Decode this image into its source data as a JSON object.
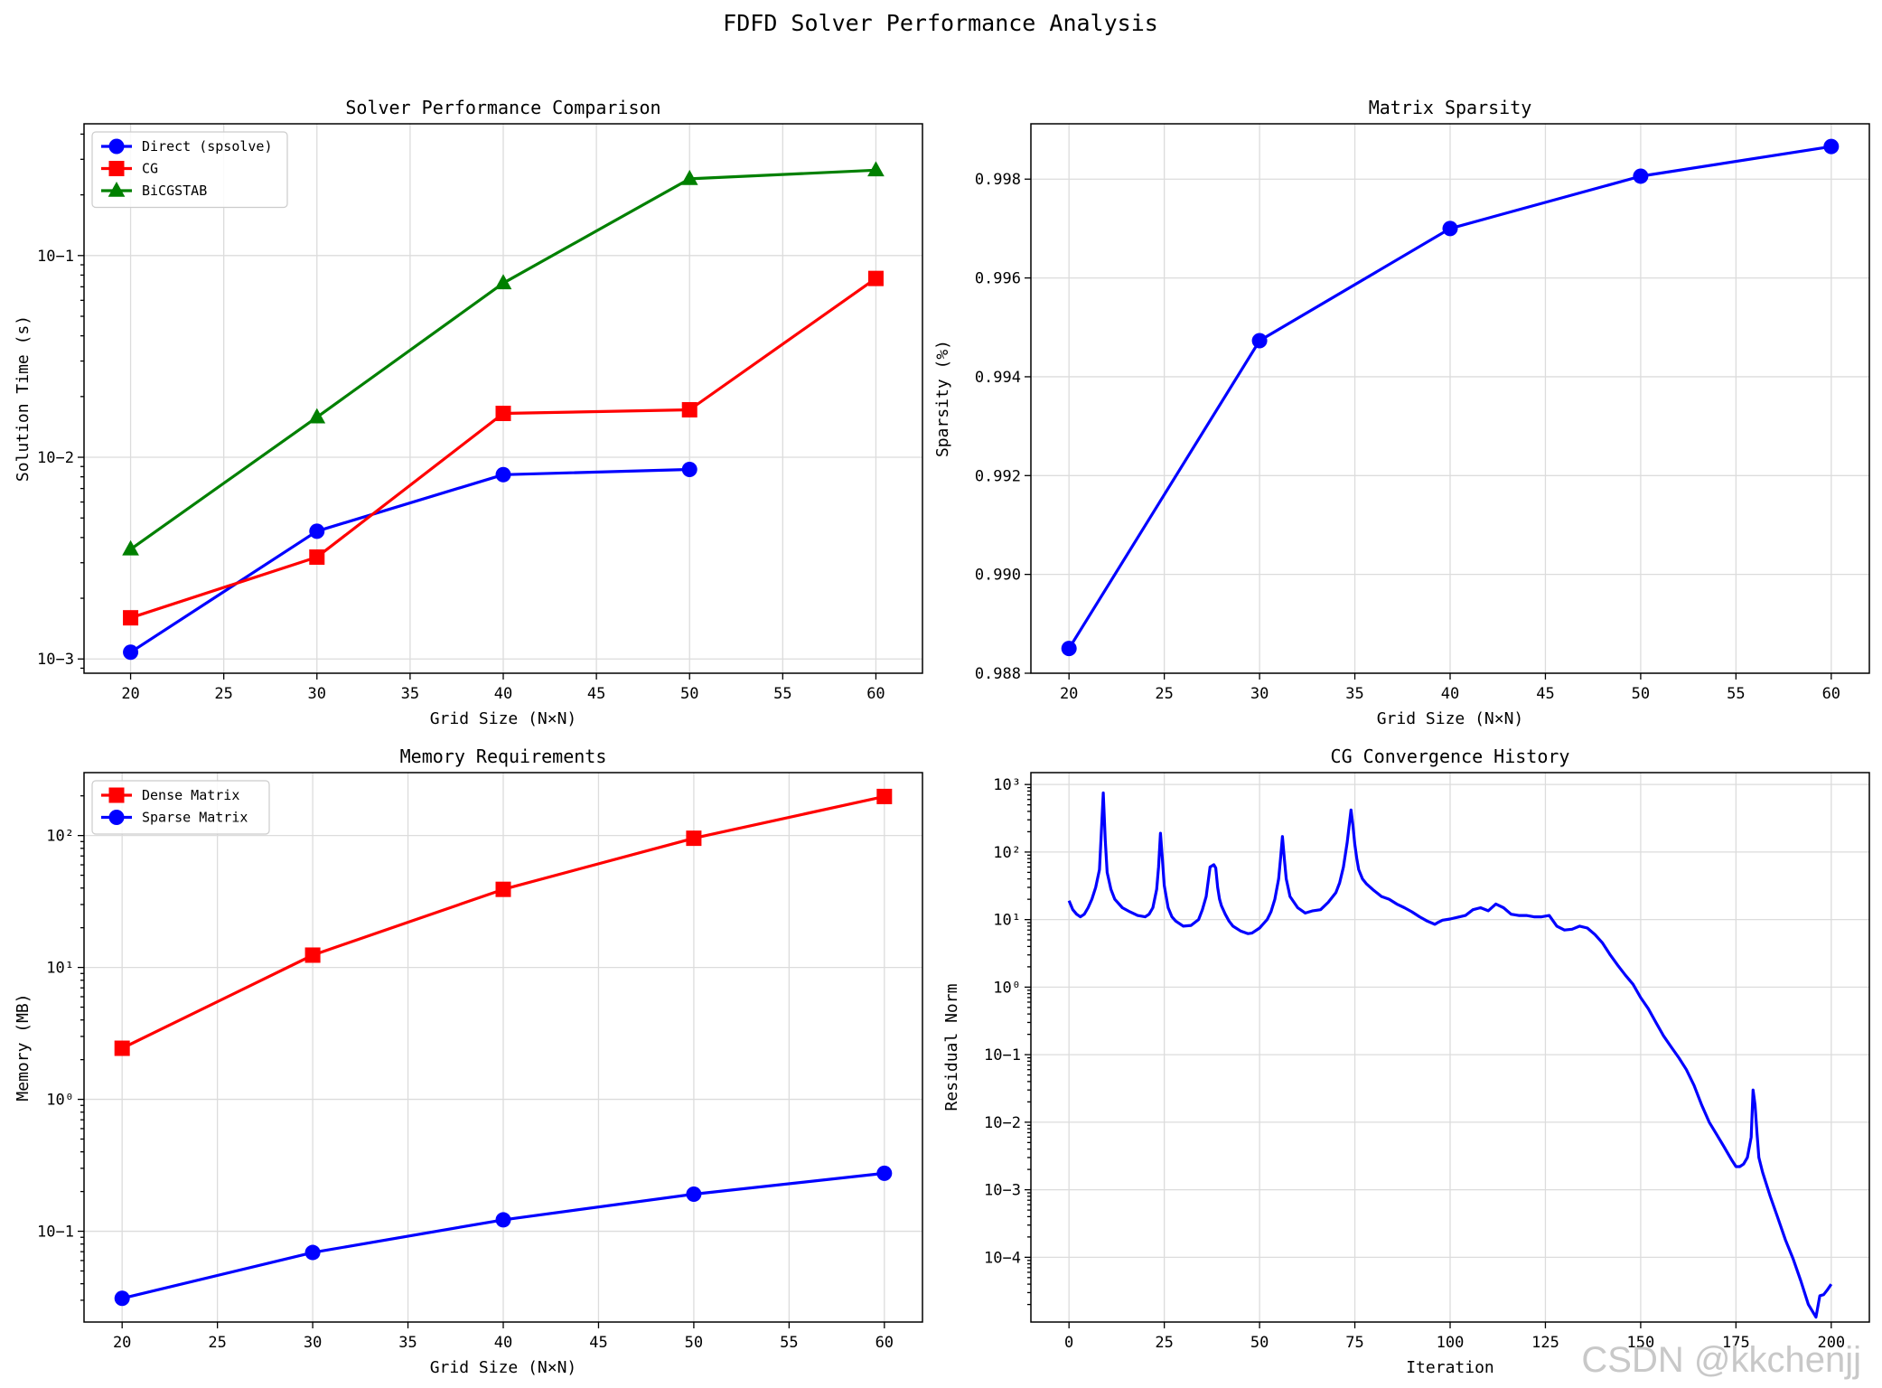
{
  "figure": {
    "suptitle": "FDFD Solver Performance Analysis",
    "watermark": "CSDN @kkchenjj",
    "colors": {
      "blue": "#0000ff",
      "red": "#ff0000",
      "green": "#008000",
      "grid": "#dcdcdc"
    }
  },
  "chart_data": [
    {
      "id": "p1",
      "type": "line",
      "title": "Solver Performance Comparison",
      "xlabel": "Grid Size (N×N)",
      "ylabel": "Solution Time (s)",
      "yscale": "log",
      "xlim": [
        17.5,
        62.5
      ],
      "ylim": [
        0.00085,
        0.45
      ],
      "xticks": [
        20,
        25,
        30,
        35,
        40,
        45,
        50,
        55,
        60
      ],
      "xticklabels": [
        "20",
        "25",
        "30",
        "35",
        "40",
        "45",
        "50",
        "55",
        "60"
      ],
      "yticks": [
        0.001,
        0.01,
        0.1
      ],
      "yticklabels": [
        "10−3",
        "10−2",
        "10−1"
      ],
      "legend": "top-left",
      "series": [
        {
          "name": "Direct (spsolve)",
          "color": "#0000ff",
          "marker": "circle",
          "x": [
            20,
            30,
            40,
            50
          ],
          "values": [
            0.00108,
            0.0043,
            0.0082,
            0.0087
          ]
        },
        {
          "name": "CG",
          "color": "#ff0000",
          "marker": "square",
          "x": [
            20,
            30,
            40,
            50,
            60
          ],
          "values": [
            0.0016,
            0.0032,
            0.0165,
            0.0172,
            0.077
          ]
        },
        {
          "name": "BiCGSTAB",
          "color": "#008000",
          "marker": "triangle",
          "x": [
            20,
            30,
            40,
            50,
            60
          ],
          "values": [
            0.0035,
            0.0158,
            0.073,
            0.24,
            0.265
          ]
        }
      ]
    },
    {
      "id": "p2",
      "type": "line",
      "title": "Matrix Sparsity",
      "xlabel": "Grid Size (N×N)",
      "ylabel": "Sparsity (%)",
      "yscale": "linear",
      "xlim": [
        18,
        62
      ],
      "ylim": [
        0.988,
        0.99912
      ],
      "xticks": [
        20,
        25,
        30,
        35,
        40,
        45,
        50,
        55,
        60
      ],
      "xticklabels": [
        "20",
        "25",
        "30",
        "35",
        "40",
        "45",
        "50",
        "55",
        "60"
      ],
      "yticks": [
        0.988,
        0.99,
        0.992,
        0.994,
        0.996,
        0.998
      ],
      "yticklabels": [
        "0.988",
        "0.990",
        "0.992",
        "0.994",
        "0.996",
        "0.998"
      ],
      "series": [
        {
          "name": "Sparsity",
          "color": "#0000ff",
          "marker": "circle",
          "x": [
            20,
            30,
            40,
            50,
            60
          ],
          "values": [
            0.9885,
            0.99473,
            0.997,
            0.99806,
            0.99866
          ]
        }
      ]
    },
    {
      "id": "p3",
      "type": "line",
      "title": "Memory Requirements",
      "xlabel": "Grid Size (N×N)",
      "ylabel": "Memory (MB)",
      "yscale": "log",
      "xlim": [
        18,
        62
      ],
      "ylim": [
        0.0205,
        300
      ],
      "xticks": [
        20,
        25,
        30,
        35,
        40,
        45,
        50,
        55,
        60
      ],
      "xticklabels": [
        "20",
        "25",
        "30",
        "35",
        "40",
        "45",
        "50",
        "55",
        "60"
      ],
      "yticks": [
        0.1,
        1,
        10,
        100
      ],
      "yticklabels": [
        "10−1",
        "10⁰",
        "10¹",
        "10²"
      ],
      "legend": "top-left",
      "series": [
        {
          "name": "Dense Matrix",
          "color": "#ff0000",
          "marker": "square",
          "x": [
            20,
            30,
            40,
            50,
            60
          ],
          "values": [
            2.44,
            12.4,
            39.1,
            95.4,
            197.8
          ]
        },
        {
          "name": "Sparse Matrix",
          "color": "#0000ff",
          "marker": "circle",
          "x": [
            20,
            30,
            40,
            50,
            60
          ],
          "values": [
            0.031,
            0.069,
            0.122,
            0.191,
            0.275
          ]
        }
      ]
    },
    {
      "id": "p4",
      "type": "line",
      "title": "CG Convergence History",
      "xlabel": "Iteration",
      "ylabel": "Residual Norm",
      "yscale": "log",
      "xlim": [
        -10,
        210
      ],
      "ylim": [
        1.1e-05,
        1500
      ],
      "xticks": [
        0,
        25,
        50,
        75,
        100,
        125,
        150,
        175,
        200
      ],
      "xticklabels": [
        "0",
        "25",
        "50",
        "75",
        "100",
        "125",
        "150",
        "175",
        "200"
      ],
      "yticks": [
        0.0001,
        0.001,
        0.01,
        0.1,
        1,
        10,
        100,
        1000
      ],
      "yticklabels": [
        "10−4",
        "10−3",
        "10−2",
        "10−1",
        "10⁰",
        "10¹",
        "10²",
        "10³"
      ],
      "series": [
        {
          "name": "Residual",
          "color": "#0000ff",
          "marker": "none",
          "x": [
            0,
            1,
            2,
            3,
            4,
            5,
            6,
            7,
            8,
            8.5,
            9,
            9.5,
            10,
            11,
            12,
            14,
            16,
            18,
            20,
            21,
            22,
            23,
            23.5,
            24,
            24.5,
            25,
            26,
            27,
            28,
            30,
            32,
            34,
            35,
            36,
            37,
            38,
            38.5,
            39,
            39.5,
            40,
            41,
            42,
            43,
            45,
            47,
            48,
            50,
            52,
            53,
            54,
            55,
            55.5,
            56,
            56.5,
            57,
            58,
            60,
            62,
            64,
            66,
            68,
            70,
            71,
            72,
            73,
            74,
            74.5,
            75,
            75.5,
            76,
            77,
            78,
            80,
            82,
            84,
            86,
            88,
            90,
            92,
            94,
            96,
            97,
            98,
            100,
            102,
            104,
            106,
            108,
            110,
            112,
            114,
            116,
            118,
            120,
            122,
            124,
            126,
            128,
            130,
            132,
            134,
            136,
            138,
            140,
            142,
            144,
            146,
            148,
            150,
            152,
            154,
            156,
            158,
            160,
            162,
            164,
            166,
            168,
            170,
            172,
            174,
            175,
            176,
            177,
            178,
            179,
            179.5,
            180,
            180.5,
            181,
            182,
            184,
            186,
            188,
            190,
            192,
            194,
            196,
            197,
            198,
            199,
            200
          ],
          "values": [
            19,
            14,
            12,
            11,
            12,
            15,
            20,
            30,
            55,
            200,
            750,
            150,
            50,
            28,
            20,
            15,
            13,
            11.5,
            11,
            12,
            15,
            28,
            60,
            190,
            80,
            32,
            15,
            11,
            9.5,
            8,
            8.2,
            10,
            14,
            22,
            60,
            65,
            58,
            30,
            20,
            16,
            12,
            9.5,
            8,
            6.8,
            6.2,
            6.3,
            7.5,
            10,
            13,
            20,
            40,
            80,
            170,
            80,
            40,
            22,
            15,
            12.5,
            13.5,
            14,
            18,
            25,
            35,
            60,
            140,
            420,
            250,
            130,
            80,
            55,
            40,
            34,
            27,
            22,
            20,
            17,
            15,
            13,
            11,
            9.5,
            8.5,
            9.2,
            9.8,
            10.2,
            10.8,
            11.5,
            14,
            15,
            13.5,
            17,
            15,
            12,
            11.5,
            11.5,
            11,
            11,
            11.5,
            8,
            7,
            7.2,
            8,
            7.5,
            6,
            4.5,
            3,
            2.1,
            1.5,
            1.1,
            0.7,
            0.48,
            0.3,
            0.19,
            0.13,
            0.09,
            0.06,
            0.035,
            0.018,
            0.01,
            0.0065,
            0.0042,
            0.0027,
            0.0022,
            0.0022,
            0.0024,
            0.003,
            0.006,
            0.03,
            0.018,
            0.007,
            0.003,
            0.0018,
            0.0008,
            0.00038,
            0.00018,
            9.5e-05,
            4.5e-05,
            2e-05,
            1.3e-05,
            2.7e-05,
            2.8e-05,
            3.3e-05,
            4e-05
          ]
        }
      ]
    }
  ]
}
